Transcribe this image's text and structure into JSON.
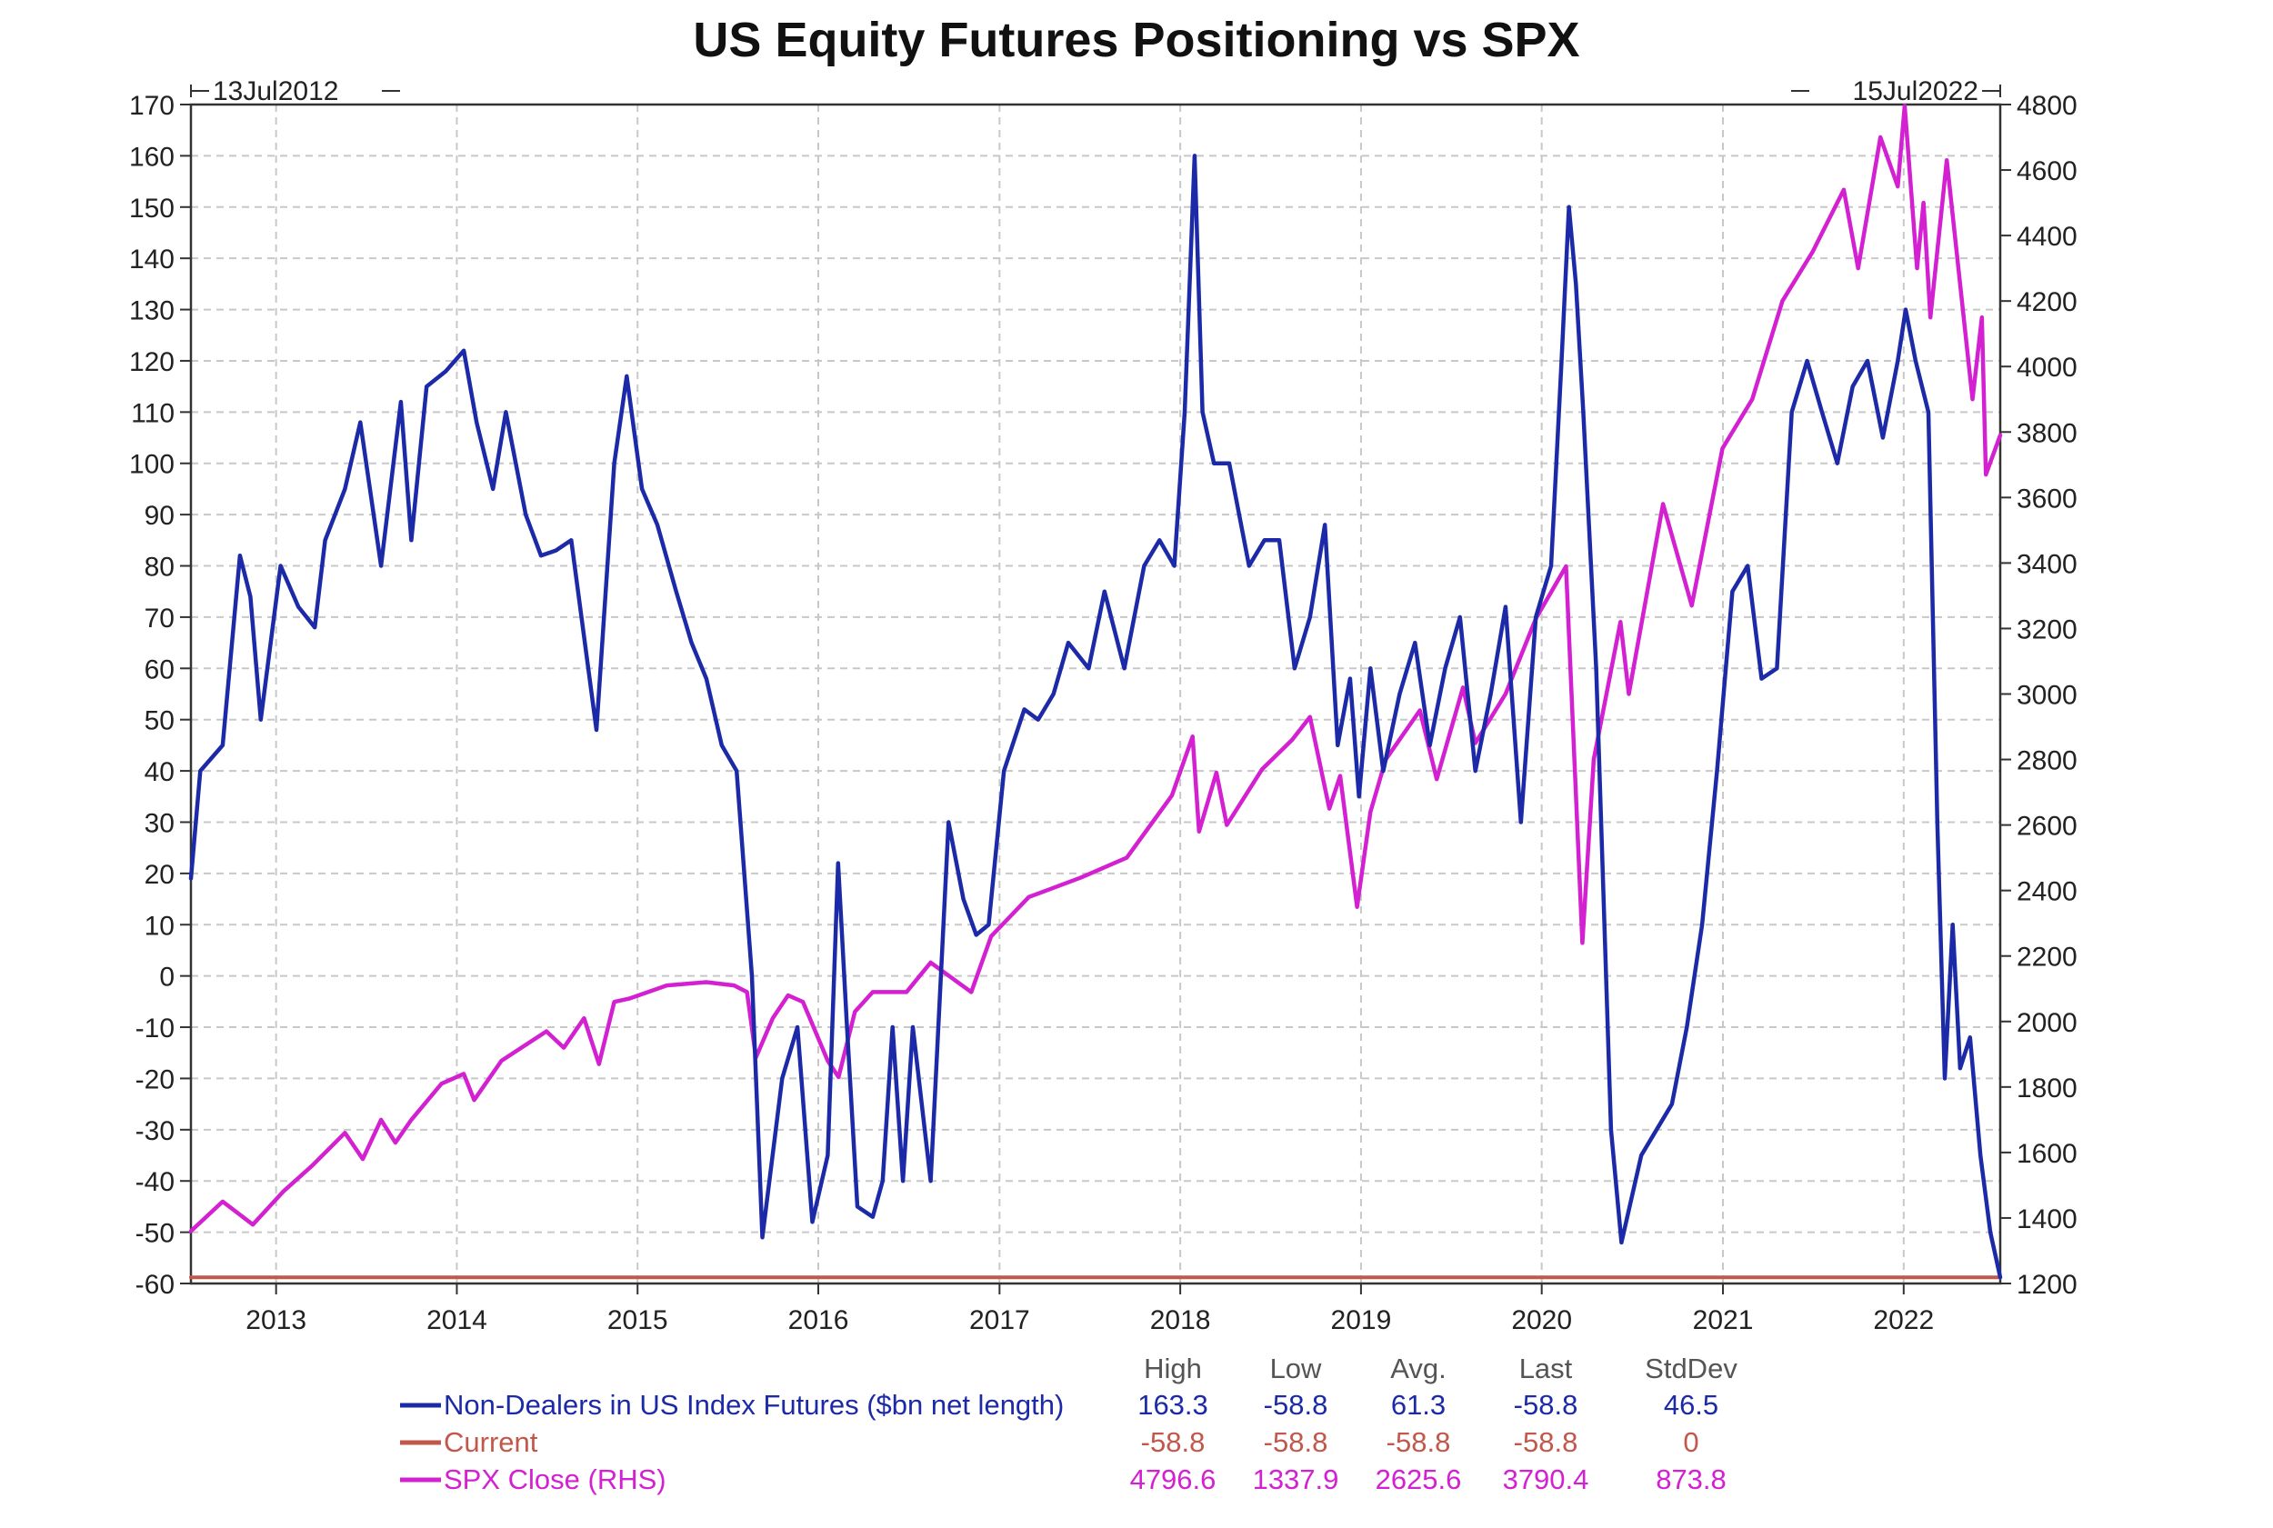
{
  "chart_data": {
    "type": "line",
    "title": "US Equity Futures Positioning vs SPX",
    "range_start_label": "13Jul2012",
    "range_end_label": "15Jul2022",
    "x_range": [
      "2012-07-13",
      "2022-07-15"
    ],
    "x_tick_labels": [
      "2013",
      "2014",
      "2015",
      "2016",
      "2017",
      "2018",
      "2019",
      "2020",
      "2021",
      "2022"
    ],
    "y_left": {
      "range": [
        -60,
        170
      ],
      "step": 10
    },
    "y_right": {
      "range": [
        1200,
        4800
      ],
      "step": 200
    },
    "grid": true,
    "legend_position": "bottom",
    "stats_headers": [
      "High",
      "Low",
      "Avg.",
      "Last",
      "StdDev"
    ],
    "series": [
      {
        "name": "Non-Dealers in US Index Futures ($bn net length)",
        "axis": "left",
        "color": "#1c2aa8",
        "stats": [
          "163.3",
          "-58.8",
          "61.3",
          "-58.8",
          "46.5"
        ],
        "x": [
          "2012-07-13",
          "2012-08-01",
          "2012-09-15",
          "2012-10-20",
          "2012-11-10",
          "2012-12-01",
          "2013-01-10",
          "2013-02-15",
          "2013-03-20",
          "2013-04-10",
          "2013-05-20",
          "2013-06-20",
          "2013-08-01",
          "2013-09-10",
          "2013-10-01",
          "2013-11-01",
          "2013-12-10",
          "2014-01-15",
          "2014-02-10",
          "2014-03-15",
          "2014-04-10",
          "2014-05-20",
          "2014-06-20",
          "2014-07-20",
          "2014-08-20",
          "2014-10-10",
          "2014-11-15",
          "2014-12-10",
          "2015-01-10",
          "2015-02-10",
          "2015-03-20",
          "2015-04-20",
          "2015-05-20",
          "2015-06-20",
          "2015-07-20",
          "2015-08-20",
          "2015-09-10",
          "2015-10-20",
          "2015-11-20",
          "2015-12-20",
          "2016-01-20",
          "2016-02-10",
          "2016-02-28",
          "2016-03-20",
          "2016-04-20",
          "2016-05-10",
          "2016-05-30",
          "2016-06-20",
          "2016-07-10",
          "2016-08-15",
          "2016-09-20",
          "2016-10-20",
          "2016-11-15",
          "2016-12-10",
          "2017-01-10",
          "2017-02-20",
          "2017-03-20",
          "2017-04-20",
          "2017-05-20",
          "2017-06-30",
          "2017-08-01",
          "2017-09-10",
          "2017-10-20",
          "2017-11-20",
          "2017-12-20",
          "2018-01-10",
          "2018-01-30",
          "2018-02-15",
          "2018-03-10",
          "2018-04-10",
          "2018-05-20",
          "2018-06-20",
          "2018-07-20",
          "2018-08-20",
          "2018-09-20",
          "2018-10-20",
          "2018-11-15",
          "2018-12-10",
          "2018-12-28",
          "2019-01-20",
          "2019-02-15",
          "2019-03-20",
          "2019-04-20",
          "2019-05-20",
          "2019-06-20",
          "2019-07-20",
          "2019-08-20",
          "2019-09-20",
          "2019-10-20",
          "2019-11-20",
          "2019-12-20",
          "2020-01-20",
          "2020-02-10",
          "2020-02-25",
          "2020-03-10",
          "2020-03-25",
          "2020-04-20",
          "2020-05-20",
          "2020-06-10",
          "2020-07-20",
          "2020-08-20",
          "2020-09-20",
          "2020-10-20",
          "2020-11-20",
          "2020-12-20",
          "2021-01-20",
          "2021-02-20",
          "2021-03-20",
          "2021-04-20",
          "2021-05-20",
          "2021-06-20",
          "2021-07-20",
          "2021-08-20",
          "2021-09-20",
          "2021-10-20",
          "2021-11-20",
          "2021-12-20",
          "2022-01-05",
          "2022-01-25",
          "2022-02-20",
          "2022-03-10",
          "2022-03-25",
          "2022-04-10",
          "2022-04-25",
          "2022-05-15",
          "2022-06-05",
          "2022-06-25",
          "2022-07-15"
        ],
        "y": [
          19,
          40,
          45,
          82,
          74,
          50,
          80,
          72,
          68,
          85,
          95,
          108,
          80,
          112,
          85,
          115,
          118,
          122,
          108,
          95,
          110,
          90,
          82,
          83,
          85,
          48,
          100,
          117,
          95,
          88,
          75,
          65,
          58,
          45,
          40,
          0,
          -51,
          -20,
          -10,
          -48,
          -35,
          22,
          -10,
          -45,
          -47,
          -40,
          -10,
          -40,
          -10,
          -40,
          30,
          15,
          8,
          10,
          40,
          52,
          50,
          55,
          65,
          60,
          75,
          60,
          80,
          85,
          80,
          110,
          160,
          110,
          100,
          100,
          80,
          85,
          85,
          60,
          70,
          88,
          45,
          58,
          35,
          60,
          40,
          55,
          65,
          45,
          60,
          70,
          40,
          55,
          72,
          30,
          70,
          80,
          120,
          150,
          135,
          110,
          60,
          -30,
          -52,
          -35,
          -30,
          -25,
          -10,
          10,
          40,
          75,
          80,
          58,
          60,
          110,
          120,
          110,
          100,
          115,
          120,
          105,
          120,
          130,
          120,
          110,
          30,
          -20,
          10,
          -18,
          -12,
          -35,
          -50,
          -58.8
        ]
      },
      {
        "name": "Current",
        "axis": "left",
        "color": "#c2584b",
        "stats": [
          "-58.8",
          "-58.8",
          "-58.8",
          "-58.8",
          "0"
        ],
        "x": [
          "2012-07-13",
          "2022-07-15"
        ],
        "y": [
          -58.8,
          -58.8
        ]
      },
      {
        "name": "SPX Close (RHS)",
        "axis": "right",
        "color": "#d321d1",
        "stats": [
          "4796.6",
          "1337.9",
          "2625.6",
          "3790.4",
          "873.8"
        ],
        "x": [
          "2012-07-13",
          "2012-09-15",
          "2012-11-15",
          "2013-01-15",
          "2013-03-15",
          "2013-05-20",
          "2013-06-25",
          "2013-08-01",
          "2013-08-30",
          "2013-10-01",
          "2013-12-01",
          "2014-01-15",
          "2014-02-05",
          "2014-04-01",
          "2014-07-01",
          "2014-08-05",
          "2014-09-15",
          "2014-10-15",
          "2014-11-15",
          "2014-12-15",
          "2015-03-01",
          "2015-05-20",
          "2015-07-15",
          "2015-08-10",
          "2015-08-28",
          "2015-10-01",
          "2015-11-01",
          "2015-12-01",
          "2016-01-20",
          "2016-02-11",
          "2016-03-15",
          "2016-04-20",
          "2016-06-27",
          "2016-08-15",
          "2016-11-05",
          "2016-12-15",
          "2017-03-01",
          "2017-06-15",
          "2017-09-15",
          "2017-12-15",
          "2018-01-26",
          "2018-02-08",
          "2018-03-15",
          "2018-04-05",
          "2018-06-15",
          "2018-08-15",
          "2018-09-20",
          "2018-10-29",
          "2018-11-20",
          "2018-12-24",
          "2019-01-20",
          "2019-02-20",
          "2019-04-30",
          "2019-06-03",
          "2019-07-26",
          "2019-08-20",
          "2019-10-20",
          "2019-12-20",
          "2020-02-19",
          "2020-03-23",
          "2020-04-15",
          "2020-06-08",
          "2020-06-25",
          "2020-09-02",
          "2020-10-30",
          "2020-12-31",
          "2021-03-01",
          "2021-05-01",
          "2021-07-01",
          "2021-09-02",
          "2021-10-01",
          "2021-11-15",
          "2021-12-20",
          "2022-01-03",
          "2022-01-28",
          "2022-02-10",
          "2022-02-24",
          "2022-03-29",
          "2022-05-20",
          "2022-06-08",
          "2022-06-16",
          "2022-07-15"
        ],
        "y": [
          1360,
          1450,
          1380,
          1480,
          1560,
          1660,
          1580,
          1700,
          1630,
          1700,
          1810,
          1840,
          1760,
          1880,
          1970,
          1920,
          2010,
          1870,
          2060,
          2070,
          2110,
          2120,
          2110,
          2090,
          1890,
          2010,
          2080,
          2060,
          1880,
          1830,
          2030,
          2090,
          2090,
          2180,
          2090,
          2260,
          2380,
          2440,
          2500,
          2690,
          2870,
          2580,
          2760,
          2600,
          2770,
          2860,
          2930,
          2650,
          2750,
          2350,
          2640,
          2800,
          2950,
          2740,
          3020,
          2850,
          3000,
          3230,
          3390,
          2240,
          2800,
          3220,
          3000,
          3580,
          3270,
          3750,
          3900,
          4200,
          4350,
          4540,
          4300,
          4700,
          4550,
          4796,
          4300,
          4500,
          4150,
          4630,
          3900,
          4150,
          3670,
          3790
        ]
      }
    ]
  }
}
